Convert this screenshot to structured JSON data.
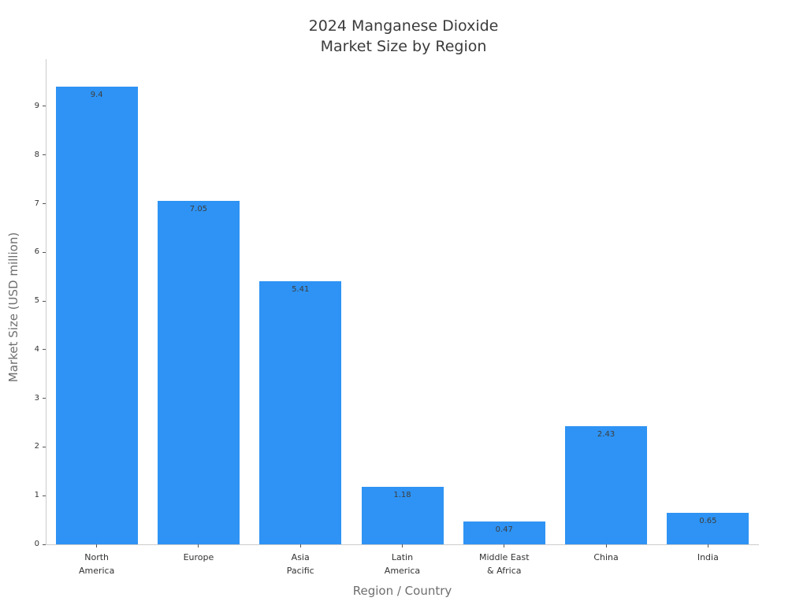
{
  "chart_data": {
    "type": "bar",
    "title": "2024 Manganese Dioxide\nMarket Size by Region",
    "xlabel": "Region / Country",
    "ylabel": "Market Size (USD million)",
    "categories": [
      "North\nAmerica",
      "Europe",
      "Asia\nPacific",
      "Latin\nAmerica",
      "Middle East\n& Africa",
      "China",
      "India"
    ],
    "category_names": [
      "North America",
      "Europe",
      "Asia Pacific",
      "Latin America",
      "Middle East & Africa",
      "China",
      "India"
    ],
    "values": [
      9.4,
      7.05,
      5.41,
      1.18,
      0.47,
      2.43,
      0.65
    ],
    "value_labels": [
      "9.4",
      "7.05",
      "5.41",
      "1.18",
      "0.47",
      "2.43",
      "0.65"
    ],
    "yticks": [
      0,
      1,
      2,
      3,
      4,
      5,
      6,
      7,
      8,
      9
    ],
    "ylim": [
      0,
      9.97
    ],
    "grid": false,
    "legend": "none",
    "colors": {
      "bar": "#2e93f4",
      "title_text": "#3b3b3b",
      "tick_text": "#333333",
      "axis_label_text": "#6e6e6e",
      "value_label_text": "#3d3d3d",
      "spine": "#cccccc"
    }
  }
}
